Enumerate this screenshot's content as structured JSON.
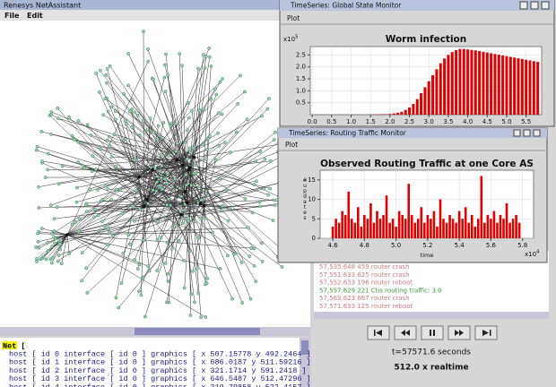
{
  "main_window": {
    "title": "Renesys NetAssistant",
    "menu": [
      "File",
      "Edit"
    ]
  },
  "net_text": {
    "lines": [
      "Net [",
      "host [ id 0 interface [ id 0 ] graphics [ x 507.15778 y 492.2464 ] ]",
      "host [ id 1 interface [ id 0 ] graphics [ x 686.0187 y 511.59216 ] ]",
      "host [ id 2 interface [ id 0 ] graphics [ x 321.1714 y 591.2418 ] ]",
      "host [ id 3 interface [ id 0 ] graphics [ x 646.5487 y 512.47296 ] ]",
      "host [ id 4 interface [ id 0 ] graphics [ x 319.79858 y 522.4157 ] ]"
    ]
  },
  "event_log": [
    {
      "text": "57,535.648 459 router crash",
      "color": "#d27a7a"
    },
    {
      "text": "57,551.633 625 router crash",
      "color": "#d27a7a"
    },
    {
      "text": "57,552.633 196 router reboot",
      "color": "#d27a7a"
    },
    {
      "text": "57,557.629 221 Cbs  routing traffic: 3.0",
      "color": "#3c9a3c"
    },
    {
      "text": "57,563.623 667 router crash",
      "color": "#d27a7a"
    },
    {
      "text": "57,571.633 125 router reboot",
      "color": "#d27a7a"
    }
  ],
  "status": {
    "time": "t=57571.6 seconds",
    "speed": "512.0 x realtime"
  },
  "windows": [
    {
      "title": "TimeSeries: Global State Monitor",
      "menu": "Plot"
    },
    {
      "title": "TimeSeries: Routing Traffic Monitor",
      "menu": "Plot"
    }
  ],
  "chart_data": [
    {
      "type": "bar",
      "title": "Worm infection",
      "color": "#e00000",
      "y_scale": "x10",
      "y_scale_exp": "5",
      "x": [
        1.5,
        1.6,
        1.7,
        1.8,
        1.9,
        2.0,
        2.1,
        2.2,
        2.3,
        2.4,
        2.5,
        2.6,
        2.7,
        2.8,
        2.9,
        3.0,
        3.1,
        3.2,
        3.3,
        3.4,
        3.5,
        3.6,
        3.7,
        3.8,
        3.9,
        4.0,
        4.1,
        4.2,
        4.3,
        4.4,
        4.5,
        4.6,
        4.7,
        4.8,
        4.9,
        5.0,
        5.1,
        5.2,
        5.3,
        5.4,
        5.5,
        5.6,
        5.7,
        5.8
      ],
      "values": [
        0.01,
        0.01,
        0.01,
        0.02,
        0.02,
        0.03,
        0.05,
        0.08,
        0.12,
        0.2,
        0.3,
        0.45,
        0.65,
        0.9,
        1.15,
        1.4,
        1.65,
        1.9,
        2.15,
        2.35,
        2.5,
        2.62,
        2.7,
        2.75,
        2.75,
        2.73,
        2.71,
        2.69,
        2.66,
        2.63,
        2.6,
        2.57,
        2.54,
        2.51,
        2.48,
        2.45,
        2.42,
        2.39,
        2.36,
        2.33,
        2.3,
        2.27,
        2.24,
        2.21
      ],
      "xlim": [
        -0.05,
        5.9
      ],
      "ylim": [
        0,
        2.85
      ],
      "xticks": [
        {
          "value": 0,
          "label": "0.0"
        },
        0.5,
        {
          "value": 1,
          "label": "1.0"
        },
        1.5,
        {
          "value": 2,
          "label": "2.0"
        },
        2.5,
        {
          "value": 3,
          "label": "3.0"
        },
        3.5,
        {
          "value": 4,
          "label": "4.0"
        },
        4.5,
        {
          "value": 5,
          "label": "5.0"
        },
        5.5
      ],
      "yticks": [
        0.5,
        {
          "value": 1,
          "label": "1.0"
        },
        1.5,
        {
          "value": 2,
          "label": "2.0"
        },
        2.5
      ]
    },
    {
      "type": "bar",
      "title": "Observed Routing Traffic at one Core AS",
      "color": "#e00000",
      "ylabel": "#updates",
      "xlabel": "time",
      "x_scale": "x10",
      "x_scale_exp": "4",
      "x": [
        4.6,
        4.62,
        4.64,
        4.66,
        4.68,
        4.7,
        4.72,
        4.74,
        4.76,
        4.78,
        4.8,
        4.82,
        4.84,
        4.86,
        4.88,
        4.9,
        4.92,
        4.94,
        4.96,
        4.98,
        5.0,
        5.02,
        5.04,
        5.06,
        5.08,
        5.1,
        5.12,
        5.14,
        5.16,
        5.18,
        5.2,
        5.22,
        5.24,
        5.26,
        5.28,
        5.3,
        5.32,
        5.34,
        5.36,
        5.38,
        5.4,
        5.42,
        5.44,
        5.46,
        5.48,
        5.5,
        5.52,
        5.54,
        5.56,
        5.58,
        5.6,
        5.62,
        5.64,
        5.66,
        5.68,
        5.7,
        5.72,
        5.74,
        5.76,
        5.78
      ],
      "values": [
        3,
        5,
        4,
        7,
        6,
        12,
        5,
        4,
        8,
        3,
        6,
        5,
        9,
        4,
        7,
        5,
        6,
        11,
        4,
        5,
        3,
        7,
        6,
        5,
        14,
        6,
        4,
        5,
        8,
        4,
        6,
        5,
        7,
        3,
        10,
        5,
        4,
        6,
        5,
        4,
        7,
        5,
        8,
        4,
        6,
        3,
        5,
        16,
        4,
        6,
        5,
        7,
        4,
        6,
        5,
        9,
        4,
        5,
        6,
        4
      ],
      "xlim": [
        4.52,
        5.87
      ],
      "ylim": [
        0,
        17.5
      ],
      "xticks": [
        4.6,
        4.8,
        {
          "value": 5,
          "label": "5.0"
        },
        5.2,
        5.4,
        5.6,
        5.8
      ],
      "yticks": [
        0,
        5,
        10,
        15
      ]
    }
  ]
}
